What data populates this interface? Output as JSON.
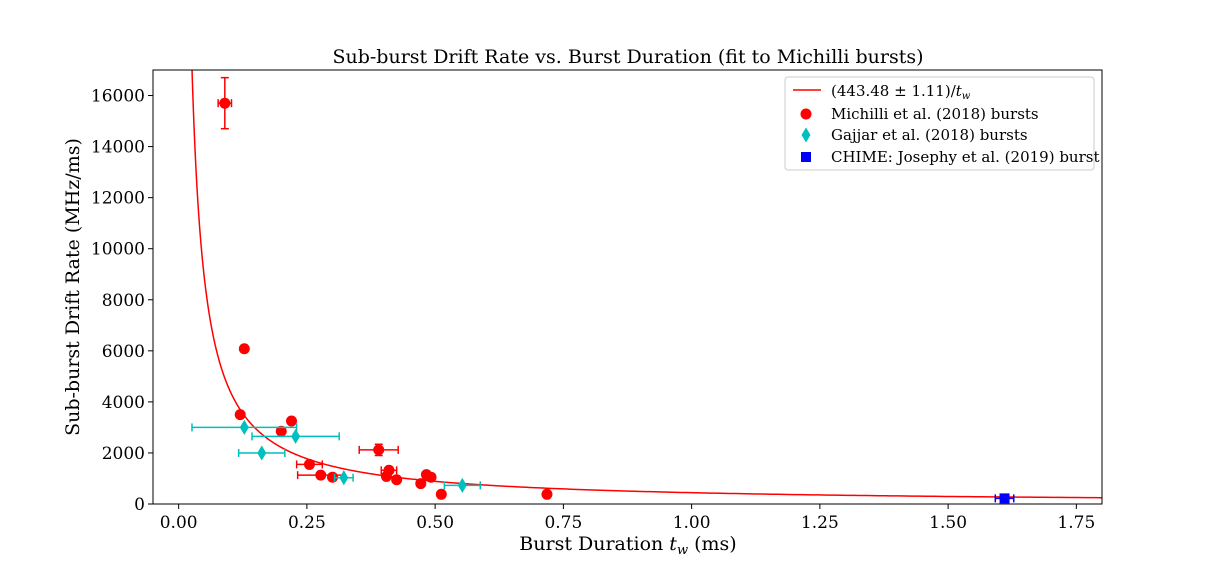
{
  "chart_data": {
    "type": "scatter",
    "title": "Sub-burst Drift Rate vs. Burst Duration (fit to Michilli bursts)",
    "xlabel_prefix": "Burst Duration ",
    "xlabel_var": "t",
    "xlabel_sub": "w",
    "xlabel_suffix": " (ms)",
    "ylabel": "Sub-burst Drift Rate (MHz/ms)",
    "xlim": [
      -0.05,
      1.8
    ],
    "ylim": [
      0,
      17000
    ],
    "x_ticks": [
      0.0,
      0.25,
      0.5,
      0.75,
      1.0,
      1.25,
      1.5,
      1.75
    ],
    "x_tick_labels": [
      "0.00",
      "0.25",
      "0.50",
      "0.75",
      "1.00",
      "1.25",
      "1.50",
      "1.75"
    ],
    "y_ticks": [
      0,
      2000,
      4000,
      6000,
      8000,
      10000,
      12000,
      14000,
      16000
    ],
    "y_tick_labels": [
      "0",
      "2000",
      "4000",
      "6000",
      "8000",
      "10000",
      "12000",
      "14000",
      "16000"
    ],
    "grid": false,
    "legend_position": "top-right",
    "fit": {
      "name_main": "(443.48 ± 1.11)/",
      "name_var": "t",
      "name_sub": "w",
      "A": 443.48,
      "color": "#ff0000"
    },
    "series": [
      {
        "name": "Michilli et al. (2018) bursts",
        "marker": "circle",
        "color": "#ff0000",
        "points": [
          {
            "x": 0.09,
            "y": 15700,
            "xerr": 0.013,
            "yerr": 1000
          },
          {
            "x": 0.128,
            "y": 6080
          },
          {
            "x": 0.12,
            "y": 3500
          },
          {
            "x": 0.2,
            "y": 2850
          },
          {
            "x": 0.22,
            "y": 3250
          },
          {
            "x": 0.255,
            "y": 1550,
            "xerr": 0.025
          },
          {
            "x": 0.277,
            "y": 1130,
            "xerr": 0.045
          },
          {
            "x": 0.3,
            "y": 1050
          },
          {
            "x": 0.39,
            "y": 2120,
            "xerr": 0.038,
            "yerr": 220
          },
          {
            "x": 0.405,
            "y": 1080
          },
          {
            "x": 0.41,
            "y": 1320,
            "xerr": 0.015
          },
          {
            "x": 0.425,
            "y": 950
          },
          {
            "x": 0.472,
            "y": 800
          },
          {
            "x": 0.483,
            "y": 1150
          },
          {
            "x": 0.492,
            "y": 1050
          },
          {
            "x": 0.512,
            "y": 380
          },
          {
            "x": 0.718,
            "y": 380
          }
        ]
      },
      {
        "name": "Gajjar et al. (2018) bursts",
        "marker": "diamond",
        "color": "#00bfbf",
        "points": [
          {
            "x": 0.128,
            "y": 3000,
            "xerr": 0.102
          },
          {
            "x": 0.162,
            "y": 2000,
            "xerr": 0.045
          },
          {
            "x": 0.228,
            "y": 2650,
            "xerr": 0.085
          },
          {
            "x": 0.322,
            "y": 1030,
            "xerr": 0.018
          },
          {
            "x": 0.553,
            "y": 730,
            "xerr": 0.035
          }
        ]
      },
      {
        "name": "CHIME: Josephy et al. (2019) burst",
        "marker": "square",
        "color": "#0000ff",
        "points": [
          {
            "x": 1.61,
            "y": 220,
            "xerr": 0.018
          }
        ]
      }
    ]
  }
}
